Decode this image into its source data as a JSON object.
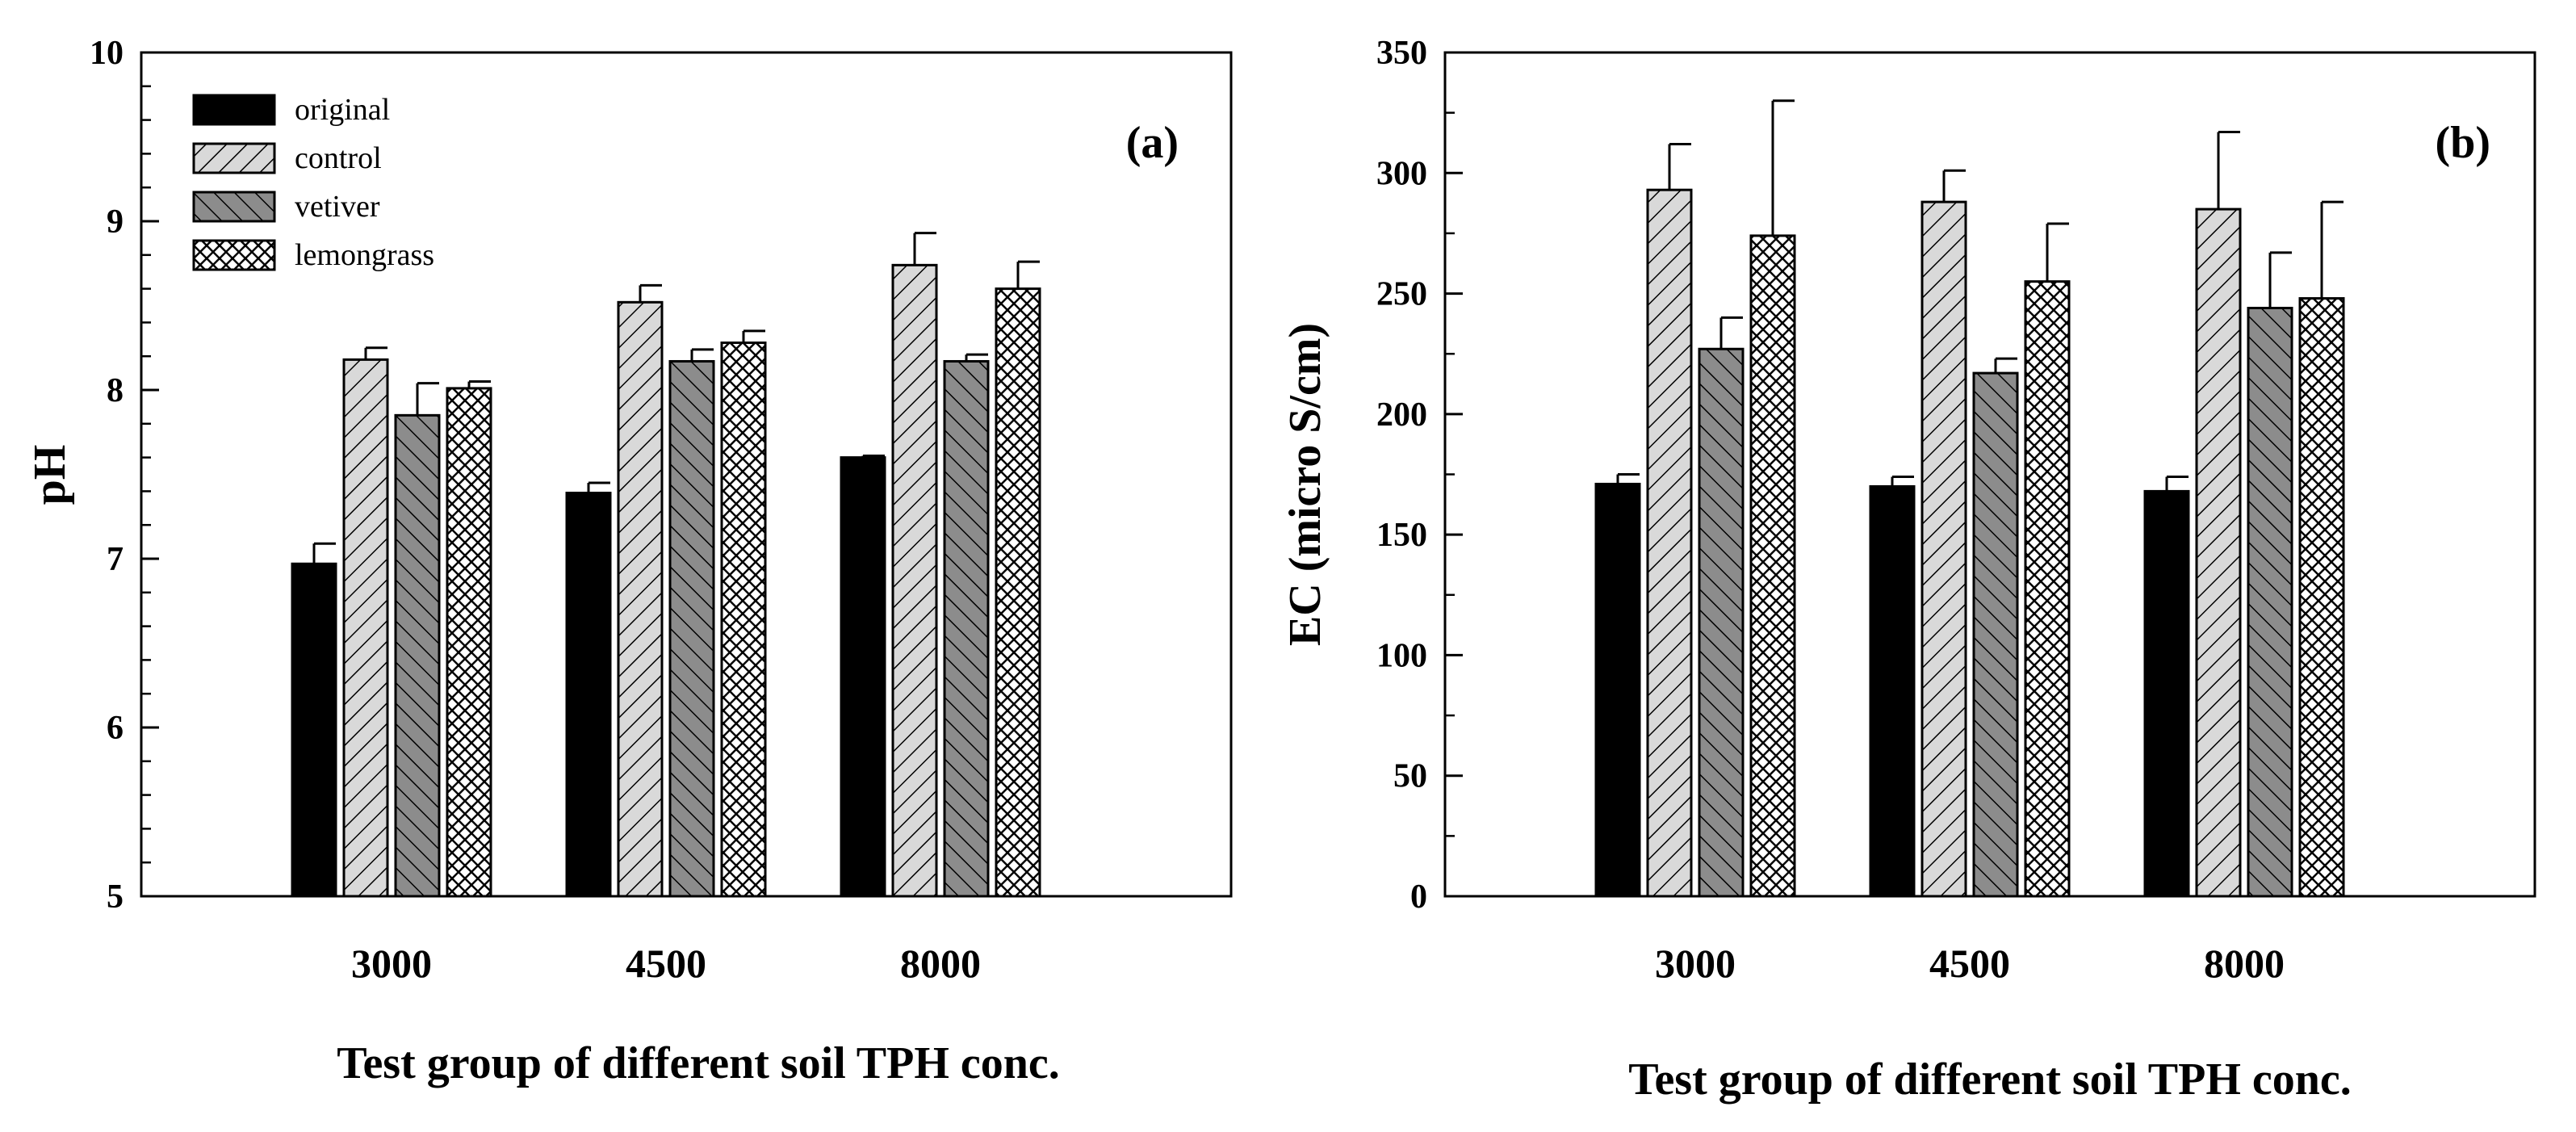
{
  "chart_data": [
    {
      "type": "bar",
      "panel_label": "(a)",
      "categories": [
        "3000",
        "4500",
        "8000"
      ],
      "series": [
        {
          "name": "original",
          "pattern": "solid",
          "values": [
            6.97,
            7.39,
            7.6
          ],
          "errors": [
            0.12,
            0.06,
            0.01
          ]
        },
        {
          "name": "control",
          "pattern": "light-hatch",
          "values": [
            8.18,
            8.52,
            8.74
          ],
          "errors": [
            0.07,
            0.1,
            0.19
          ]
        },
        {
          "name": "vetiver",
          "pattern": "dark-hatch",
          "values": [
            7.85,
            8.17,
            8.17
          ],
          "errors": [
            0.19,
            0.07,
            0.04
          ]
        },
        {
          "name": "lemongrass",
          "pattern": "crosshatch",
          "values": [
            8.01,
            8.28,
            8.6
          ],
          "errors": [
            0.04,
            0.07,
            0.16
          ]
        }
      ],
      "title": "",
      "xlabel": "Test group of different soil TPH conc.",
      "ylabel": "pH",
      "ylim": [
        5,
        10
      ],
      "yticks": [
        "5",
        "6",
        "7",
        "8",
        "9",
        "10"
      ],
      "legend": "top-left",
      "grid": false
    },
    {
      "type": "bar",
      "panel_label": "(b)",
      "categories": [
        "3000",
        "4500",
        "8000"
      ],
      "series": [
        {
          "name": "original",
          "pattern": "solid",
          "values": [
            171,
            170,
            168
          ],
          "errors": [
            4,
            4,
            6
          ]
        },
        {
          "name": "control",
          "pattern": "light-hatch",
          "values": [
            293,
            288,
            285
          ],
          "errors": [
            19,
            13,
            32
          ]
        },
        {
          "name": "vetiver",
          "pattern": "dark-hatch",
          "values": [
            227,
            217,
            244
          ],
          "errors": [
            13,
            6,
            23
          ]
        },
        {
          "name": "lemongrass",
          "pattern": "crosshatch",
          "values": [
            274,
            255,
            248
          ],
          "errors": [
            56,
            24,
            40
          ]
        }
      ],
      "title": "",
      "xlabel": "Test group of different soil TPH conc.",
      "ylabel": "EC (micro S/cm)",
      "ylim": [
        0,
        350
      ],
      "yticks": [
        "0",
        "50",
        "100",
        "150",
        "200",
        "250",
        "300",
        "350"
      ],
      "grid": false
    }
  ]
}
